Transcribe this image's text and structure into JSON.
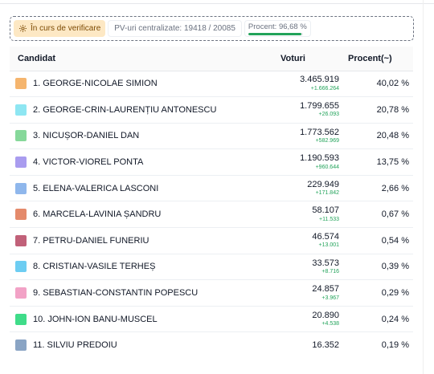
{
  "status": {
    "verify_label": "În curs de verificare",
    "pv_label": "PV-uri centralizate: 19418 / 20085",
    "percent_label": "Procent: 96,68 %",
    "percent_progress": 96.68,
    "progress_color": "#22a35a",
    "verify_icon": "gear-icon"
  },
  "table": {
    "headers": {
      "candidate": "Candidat",
      "votes": "Voturi",
      "percent": "Procent(~)"
    },
    "rows": [
      {
        "name": "1. GEORGE-NICOLAE SIMION",
        "votes": "3.465.919",
        "delta": "+1.666.264",
        "percent": "40,02 %",
        "color": "#f5b56e"
      },
      {
        "name": "2. GEORGE-CRIN-LAURENȚIU ANTONESCU",
        "votes": "1.799.655",
        "delta": "+26.093",
        "percent": "20,78 %",
        "color": "#8ee6f2"
      },
      {
        "name": "3. NICUȘOR-DANIEL DAN",
        "votes": "1.773.562",
        "delta": "+582.969",
        "percent": "20,48 %",
        "color": "#86d89a"
      },
      {
        "name": "4. VICTOR-VIOREL PONTA",
        "votes": "1.190.593",
        "delta": "+960.644",
        "percent": "13,75 %",
        "color": "#a99cef"
      },
      {
        "name": "5. ELENA-VALERICA LASCONI",
        "votes": "229.949",
        "delta": "+171.842",
        "percent": "2,66 %",
        "color": "#8fb7ec"
      },
      {
        "name": "6. MARCELA-LAVINIA ȘANDRU",
        "votes": "58.107",
        "delta": "+11.533",
        "percent": "0,67 %",
        "color": "#e48a6b"
      },
      {
        "name": "7. PETRU-DANIEL FUNERIU",
        "votes": "46.574",
        "delta": "+13.001",
        "percent": "0,54 %",
        "color": "#c16179"
      },
      {
        "name": "8. CRISTIAN-VASILE TERHEȘ",
        "votes": "33.573",
        "delta": "+8.716",
        "percent": "0,39 %",
        "color": "#6dcdf2"
      },
      {
        "name": "9. SEBASTIAN-CONSTANTIN POPESCU",
        "votes": "24.857",
        "delta": "+3.967",
        "percent": "0,29 %",
        "color": "#f2a2c6"
      },
      {
        "name": "10. JOHN-ION BANU-MUSCEL",
        "votes": "20.890",
        "delta": "+4.538",
        "percent": "0,24 %",
        "color": "#3fdc89"
      },
      {
        "name": "11. SILVIU PREDOIU",
        "votes": "16.352",
        "delta": "",
        "percent": "0,19 %",
        "color": "#8aa4c4"
      }
    ]
  }
}
